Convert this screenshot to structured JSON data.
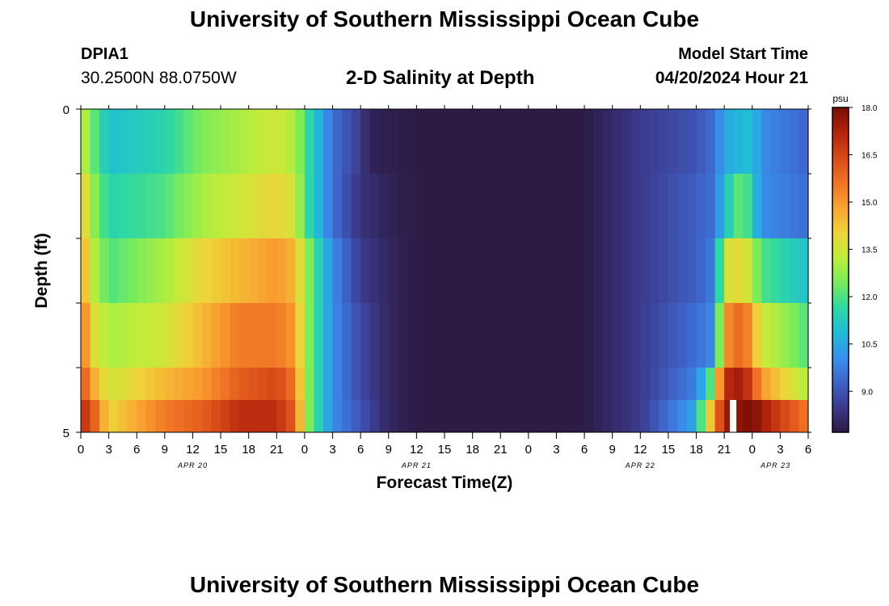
{
  "header": {
    "title": "University of Southern Mississippi Ocean Cube",
    "station_id": "DPIA1",
    "coordinates": "30.2500N  88.0750W",
    "plot_title": "2-D Salinity at Depth",
    "model_start_label": "Model Start Time",
    "model_start_value": "04/20/2024 Hour 21"
  },
  "footer": {
    "title": "University of Southern Mississippi Ocean Cube"
  },
  "colorbar": {
    "unit": "psu",
    "ticks": [
      "18.0",
      "16.5",
      "15.0",
      "13.5",
      "12.0",
      "10.5",
      "9.0"
    ],
    "range": [
      7.7,
      18.0
    ],
    "stops": [
      "#2d1b46",
      "#3b3a8c",
      "#3f63c9",
      "#3891ee",
      "#1fbcd8",
      "#2fd8a2",
      "#7aec5a",
      "#c0ed3a",
      "#eed43a",
      "#f9a331",
      "#f07224",
      "#d84a17",
      "#b2230c",
      "#7a0e04"
    ]
  },
  "chart_data": {
    "type": "heatmap",
    "title": "2-D Salinity at Depth",
    "xlabel": "Forecast Time(Z)",
    "ylabel": "Depth (ft)",
    "y_tick_labels": [
      "0",
      "5"
    ],
    "ylim": [
      0,
      5
    ],
    "x_tick_labels": [
      "0",
      "3",
      "6",
      "9",
      "12",
      "15",
      "18",
      "21",
      "0",
      "3",
      "6",
      "9",
      "12",
      "15",
      "18",
      "21",
      "0",
      "3",
      "6",
      "9",
      "12",
      "15",
      "18",
      "21",
      "0",
      "3",
      "6"
    ],
    "date_labels": [
      "APR 20",
      "APR 21",
      "APR 22",
      "APR 23"
    ],
    "time_start": "APR 20 00Z",
    "time_end": "APR 23 06Z",
    "time_step_hours": 1,
    "depth_rows": [
      "0-1",
      "1-2",
      "2-3",
      "3-4",
      "4-4.5",
      "4.5-5"
    ],
    "colorbar_unit": "psu",
    "missing_value_note": "white gap near APR 22 21Z in bottom layer",
    "row_keyframes": [
      [
        [
          0,
          13.5
        ],
        [
          1,
          12.5
        ],
        [
          3,
          11.0
        ],
        [
          9,
          11.5
        ],
        [
          13,
          12.5
        ],
        [
          17,
          13.0
        ],
        [
          21,
          13.5
        ],
        [
          23,
          13.0
        ],
        [
          24,
          12.0
        ],
        [
          27,
          9.5
        ],
        [
          30,
          8.5
        ],
        [
          31,
          7.9
        ],
        [
          36,
          7.7
        ],
        [
          54,
          7.7
        ],
        [
          60,
          8.5
        ],
        [
          66,
          9.0
        ],
        [
          68,
          9.5
        ],
        [
          69,
          10.5
        ],
        [
          72,
          11.0
        ],
        [
          73,
          10.0
        ],
        [
          78,
          9.3
        ]
      ],
      [
        [
          0,
          14.5
        ],
        [
          1,
          13.0
        ],
        [
          3,
          11.5
        ],
        [
          9,
          12.0
        ],
        [
          13,
          13.0
        ],
        [
          17,
          13.5
        ],
        [
          21,
          14.0
        ],
        [
          23,
          13.5
        ],
        [
          24,
          12.0
        ],
        [
          27,
          9.5
        ],
        [
          30,
          8.3
        ],
        [
          33,
          7.9
        ],
        [
          36,
          7.7
        ],
        [
          54,
          7.7
        ],
        [
          60,
          8.5
        ],
        [
          66,
          9.2
        ],
        [
          68,
          9.5
        ],
        [
          69,
          11.0
        ],
        [
          71,
          12.5
        ],
        [
          73,
          10.0
        ],
        [
          78,
          9.5
        ]
      ],
      [
        [
          0,
          15.0
        ],
        [
          1,
          13.5
        ],
        [
          3,
          12.0
        ],
        [
          9,
          13.0
        ],
        [
          13,
          14.0
        ],
        [
          17,
          14.5
        ],
        [
          21,
          15.0
        ],
        [
          23,
          14.5
        ],
        [
          24,
          13.0
        ],
        [
          27,
          10.0
        ],
        [
          30,
          8.5
        ],
        [
          33,
          8.0
        ],
        [
          36,
          7.7
        ],
        [
          54,
          7.7
        ],
        [
          60,
          8.5
        ],
        [
          66,
          9.2
        ],
        [
          68,
          9.8
        ],
        [
          69,
          13.5
        ],
        [
          71,
          14.0
        ],
        [
          73,
          12.0
        ],
        [
          78,
          11.0
        ]
      ],
      [
        [
          0,
          16.0
        ],
        [
          1,
          14.0
        ],
        [
          3,
          13.0
        ],
        [
          9,
          13.5
        ],
        [
          13,
          14.5
        ],
        [
          17,
          15.5
        ],
        [
          21,
          15.5
        ],
        [
          23,
          15.0
        ],
        [
          24,
          13.0
        ],
        [
          27,
          10.0
        ],
        [
          30,
          8.8
        ],
        [
          33,
          8.0
        ],
        [
          36,
          7.7
        ],
        [
          54,
          7.7
        ],
        [
          60,
          8.5
        ],
        [
          66,
          9.5
        ],
        [
          68,
          10.0
        ],
        [
          69,
          15.0
        ],
        [
          71,
          16.0
        ],
        [
          73,
          13.5
        ],
        [
          78,
          12.0
        ]
      ],
      [
        [
          0,
          16.5
        ],
        [
          1,
          15.0
        ],
        [
          3,
          13.5
        ],
        [
          9,
          14.5
        ],
        [
          13,
          15.0
        ],
        [
          17,
          16.0
        ],
        [
          21,
          16.5
        ],
        [
          23,
          15.5
        ],
        [
          24,
          13.0
        ],
        [
          27,
          10.0
        ],
        [
          30,
          8.8
        ],
        [
          33,
          8.0
        ],
        [
          36,
          7.7
        ],
        [
          54,
          7.7
        ],
        [
          60,
          8.5
        ],
        [
          66,
          9.8
        ],
        [
          67,
          11.0
        ],
        [
          68,
          13.0
        ],
        [
          69,
          17.0
        ],
        [
          71,
          17.5
        ],
        [
          73,
          15.0
        ],
        [
          78,
          13.0
        ]
      ],
      [
        [
          0,
          17.0
        ],
        [
          1,
          16.5
        ],
        [
          3,
          14.0
        ],
        [
          9,
          15.5
        ],
        [
          13,
          16.0
        ],
        [
          17,
          17.0
        ],
        [
          21,
          17.0
        ],
        [
          23,
          16.0
        ],
        [
          24,
          13.0
        ],
        [
          27,
          10.0
        ],
        [
          30,
          9.0
        ],
        [
          33,
          8.0
        ],
        [
          36,
          7.7
        ],
        [
          54,
          7.7
        ],
        [
          60,
          8.5
        ],
        [
          66,
          10.5
        ],
        [
          67,
          13.5
        ],
        [
          68,
          15.0
        ],
        [
          69,
          17.5
        ],
        [
          72,
          18.0
        ],
        [
          74,
          17.0
        ],
        [
          78,
          15.5
        ]
      ]
    ]
  }
}
